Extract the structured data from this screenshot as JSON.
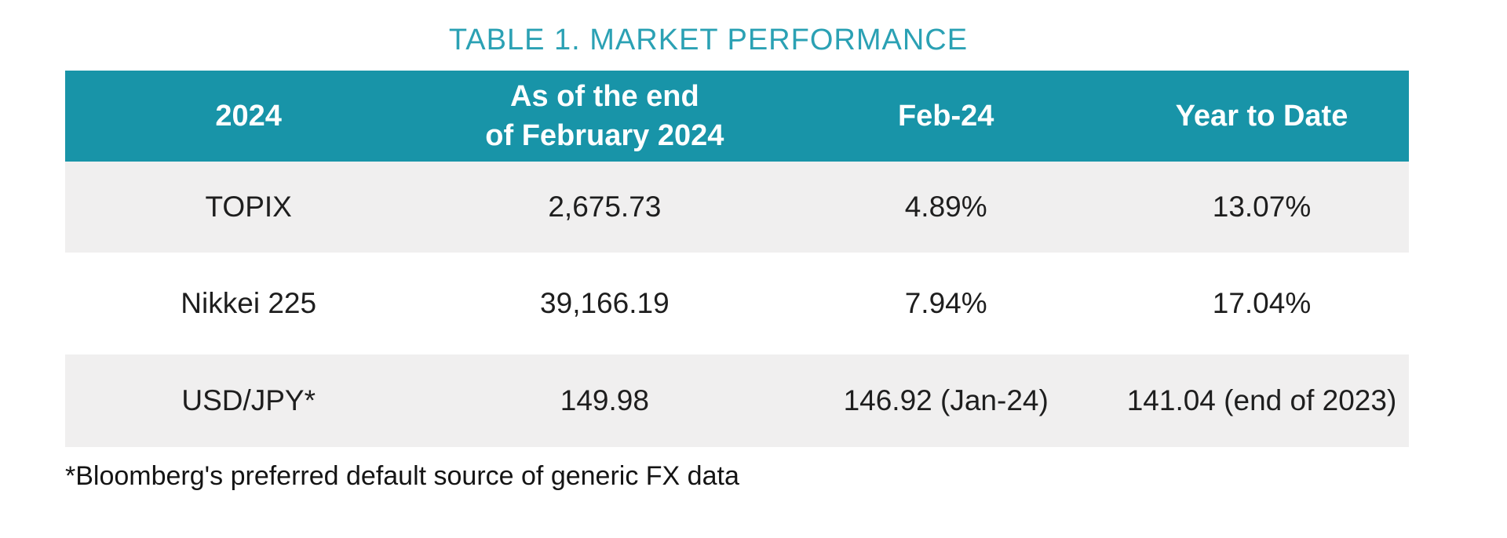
{
  "title": "TABLE 1. MARKET PERFORMANCE",
  "table": {
    "header": [
      {
        "line1": "2024",
        "line2": ""
      },
      {
        "line1": "As of the end",
        "line2": "of February 2024"
      },
      {
        "line1": "Feb-24",
        "line2": ""
      },
      {
        "line1": "Year to Date",
        "line2": ""
      }
    ],
    "rows": [
      {
        "label": "TOPIX",
        "end_feb_2024": "2,675.73",
        "feb_24": "4.89%",
        "year_to_date": "13.07%"
      },
      {
        "label": "Nikkei 225",
        "end_feb_2024": "39,166.19",
        "feb_24": "7.94%",
        "year_to_date": "17.04%"
      },
      {
        "label": "USD/JPY*",
        "end_feb_2024": "149.98",
        "feb_24": "146.92 (Jan-24)",
        "year_to_date": "141.04 (end of 2023)"
      }
    ]
  },
  "footnote": "*Bloomberg's preferred default source of generic FX data",
  "colors": {
    "header_background": "#1894a8",
    "header_text": "#ffffff",
    "title_text": "#2ba1b4",
    "alt_row_background": "#f0efef",
    "body_text": "#1e1e1e"
  }
}
